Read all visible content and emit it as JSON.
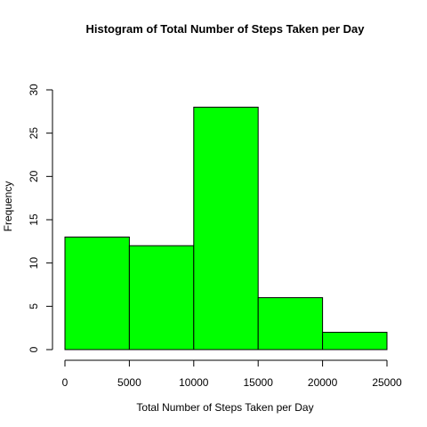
{
  "chart_data": {
    "type": "bar",
    "title": "Histogram of Total Number of Steps Taken per Day",
    "xlabel": "Total Number of Steps Taken per Day",
    "ylabel": "Frequency",
    "bins": [
      {
        "from": 0,
        "to": 5000,
        "count": 13
      },
      {
        "from": 5000,
        "to": 10000,
        "count": 12
      },
      {
        "from": 10000,
        "to": 15000,
        "count": 28
      },
      {
        "from": 15000,
        "to": 20000,
        "count": 6
      },
      {
        "from": 20000,
        "to": 25000,
        "count": 2
      }
    ],
    "xlim": [
      0,
      25000
    ],
    "ylim": [
      0,
      30
    ],
    "xticks": [
      0,
      5000,
      10000,
      15000,
      20000,
      25000
    ],
    "yticks": [
      0,
      5,
      10,
      15,
      20,
      25,
      30
    ],
    "bar_color": "#00ff00",
    "grid": false,
    "legend": "none"
  }
}
